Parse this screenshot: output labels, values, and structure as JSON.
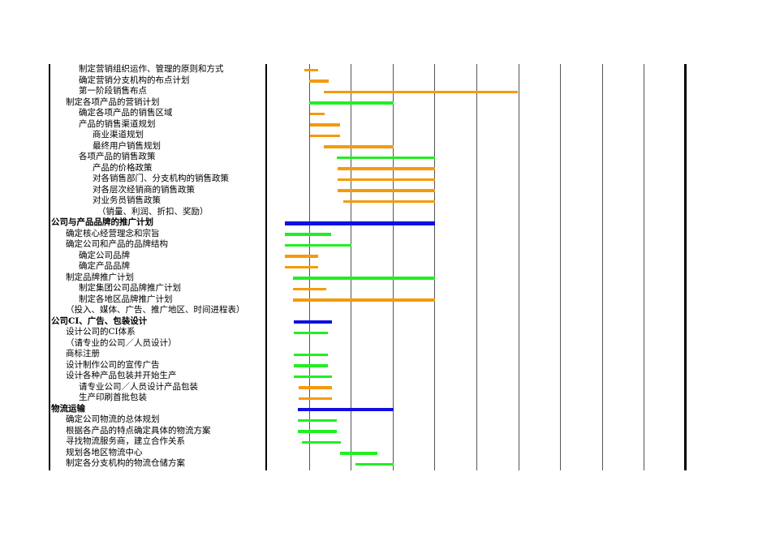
{
  "colors": {
    "orange": "#f59a0a",
    "green": "#22ee22",
    "blue": "#1010e0"
  },
  "chart_data": {
    "type": "gantt",
    "rows": [
      {
        "label": "制定营销组织运作、管理的原则和方式",
        "level": 2,
        "start": 0.9,
        "end": 1.22,
        "color": "orange"
      },
      {
        "label": "确定营销分支机构的布点计划",
        "level": 2,
        "start": 1.0,
        "end": 1.48,
        "color": "orange"
      },
      {
        "label": "第一阶段销售布点",
        "level": 2,
        "start": 1.35,
        "end": 5.99,
        "color": "orange"
      },
      {
        "label": "制定各项产品的营销计划",
        "level": 1,
        "start": 1.0,
        "end": 3.02,
        "color": "green"
      },
      {
        "label": "确定各项产品的销售区域",
        "level": 2,
        "start": 1.02,
        "end": 1.38,
        "color": "orange"
      },
      {
        "label": "产品的销售渠道规划",
        "level": 2,
        "start": 1.02,
        "end": 1.74,
        "color": "orange"
      },
      {
        "label": "商业渠道规划",
        "level": 3,
        "start": 1.02,
        "end": 1.74,
        "color": "orange"
      },
      {
        "label": "最终用户销售规划",
        "level": 3,
        "start": 1.36,
        "end": 3.02,
        "color": "orange"
      },
      {
        "label": "各项产品的销售政策",
        "level": 2,
        "start": 1.66,
        "end": 4.02,
        "color": "green"
      },
      {
        "label": "产品的价格政策",
        "level": 3,
        "start": 1.68,
        "end": 4.02,
        "color": "orange"
      },
      {
        "label": "对各销售部门、分支机构的销售政策",
        "level": 3,
        "start": 1.68,
        "end": 4.02,
        "color": "orange"
      },
      {
        "label": "对各层次经销商的销售政策",
        "level": 3,
        "start": 1.68,
        "end": 4.02,
        "color": "orange"
      },
      {
        "label": "对业务员销售政策",
        "level": 3,
        "start": 1.82,
        "end": 4.02,
        "color": "orange"
      },
      {
        "label": "（销量、利润、折扣、奖励）",
        "level": 3,
        "extra": 6,
        "start": null,
        "end": null,
        "color": ""
      },
      {
        "label": "公司与产品品牌的推广计划",
        "level": 0,
        "bold": true,
        "start": 0.42,
        "end": 4.02,
        "color": "blue"
      },
      {
        "label": "确定核心经营理念和宗旨",
        "level": 1,
        "start": 0.42,
        "end": 1.54,
        "color": "green"
      },
      {
        "label": "确定公司和产品的品牌结构",
        "level": 1,
        "start": 0.42,
        "end": 2.02,
        "color": "green"
      },
      {
        "label": "确定公司品牌",
        "level": 2,
        "start": 0.42,
        "end": 1.22,
        "color": "orange"
      },
      {
        "label": "确定产品品牌",
        "level": 2,
        "start": 0.42,
        "end": 1.22,
        "color": "orange"
      },
      {
        "label": "制定品牌推广计划",
        "level": 1,
        "start": 0.62,
        "end": 4.02,
        "color": "green"
      },
      {
        "label": "制定集团公司品牌推广计划",
        "level": 2,
        "start": 0.62,
        "end": 1.42,
        "color": "orange"
      },
      {
        "label": "制定各地区品牌推广计划",
        "level": 2,
        "start": 0.62,
        "end": 4.02,
        "color": "orange"
      },
      {
        "label": "（投入、媒体、广告、推广地区、时间进程表）",
        "level": 1,
        "start": null,
        "end": null,
        "color": ""
      },
      {
        "label": "公司CI、广告、包装设计",
        "level": 0,
        "bold": true,
        "start": 0.64,
        "end": 1.56,
        "color": "blue"
      },
      {
        "label": "设计公司的CI体系",
        "level": 1,
        "start": 0.64,
        "end": 1.46,
        "color": "green"
      },
      {
        "label": "（请专业的公司／人员设计）",
        "level": 1,
        "start": null,
        "end": null,
        "color": ""
      },
      {
        "label": "商标注册",
        "level": 1,
        "start": 0.64,
        "end": 1.46,
        "color": "green"
      },
      {
        "label": "设计制作公司的宣传广告",
        "level": 1,
        "start": 0.64,
        "end": 1.46,
        "color": "green"
      },
      {
        "label": "设计各种产品包装并开始生产",
        "level": 1,
        "start": 0.64,
        "end": 1.56,
        "color": "green"
      },
      {
        "label": "请专业公司／人员设计产品包装",
        "level": 2,
        "start": 0.76,
        "end": 1.56,
        "color": "orange"
      },
      {
        "label": "生产印刷首批包装",
        "level": 2,
        "start": 0.76,
        "end": 1.56,
        "color": "orange"
      },
      {
        "label": "物流运输",
        "level": 0,
        "bold": true,
        "start": 0.74,
        "end": 3.02,
        "color": "blue"
      },
      {
        "label": "确定公司物流的总体规划",
        "level": 1,
        "start": 0.74,
        "end": 1.66,
        "color": "green"
      },
      {
        "label": "根据各产品的特点确定具体的物流方案",
        "level": 1,
        "start": 0.74,
        "end": 1.66,
        "color": "green"
      },
      {
        "label": "寻找物流服务商，建立合作关系",
        "level": 1,
        "start": 0.84,
        "end": 1.76,
        "color": "green"
      },
      {
        "label": "规划各地区物流中心",
        "level": 1,
        "start": 1.74,
        "end": 2.64,
        "color": "green"
      },
      {
        "label": "制定各分支机构的物流仓储方案",
        "level": 1,
        "start": 2.12,
        "end": 3.02,
        "color": "green"
      }
    ]
  }
}
